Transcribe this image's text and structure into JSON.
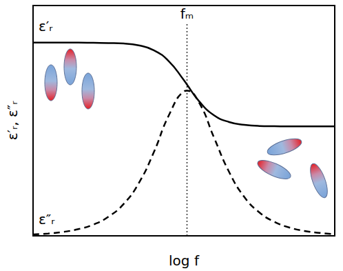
{
  "chart_data": {
    "type": "line",
    "x": [
      0,
      0.5,
      1,
      1.5,
      2,
      2.5,
      3,
      3.5,
      4,
      4.5,
      5,
      5.1,
      5.5,
      6,
      6.5,
      7,
      7.5,
      8,
      8.5,
      9,
      9.5,
      10
    ],
    "series": [
      {
        "name": "ε′ᵣ",
        "color": "#000000",
        "line_style": "solid",
        "values": [
          8.39,
          8.39,
          8.39,
          8.39,
          8.38,
          8.37,
          8.35,
          8.27,
          8.06,
          7.58,
          6.76,
          6.57,
          5.85,
          5.23,
          4.94,
          4.82,
          4.77,
          4.76,
          4.75,
          4.75,
          4.75,
          4.75
        ]
      },
      {
        "name": "ε″ᵣ",
        "color": "#000000",
        "line_style": "dashed",
        "values": [
          0.06,
          0.1,
          0.17,
          0.29,
          0.49,
          0.83,
          1.38,
          2.28,
          3.62,
          5.23,
          6.27,
          6.3,
          5.79,
          4.26,
          2.77,
          1.69,
          1.02,
          0.61,
          0.36,
          0.21,
          0.13,
          0.07
        ]
      }
    ],
    "xlabel": "log f",
    "ylabel": "ε′ᵣ, ε″ᵣ",
    "xlim": [
      0,
      10
    ],
    "ylim": [
      0,
      10
    ],
    "tick_labels": false,
    "grid": false,
    "annotations": [
      {
        "text": "fₘ",
        "x": 5.1
      }
    ]
  }
}
